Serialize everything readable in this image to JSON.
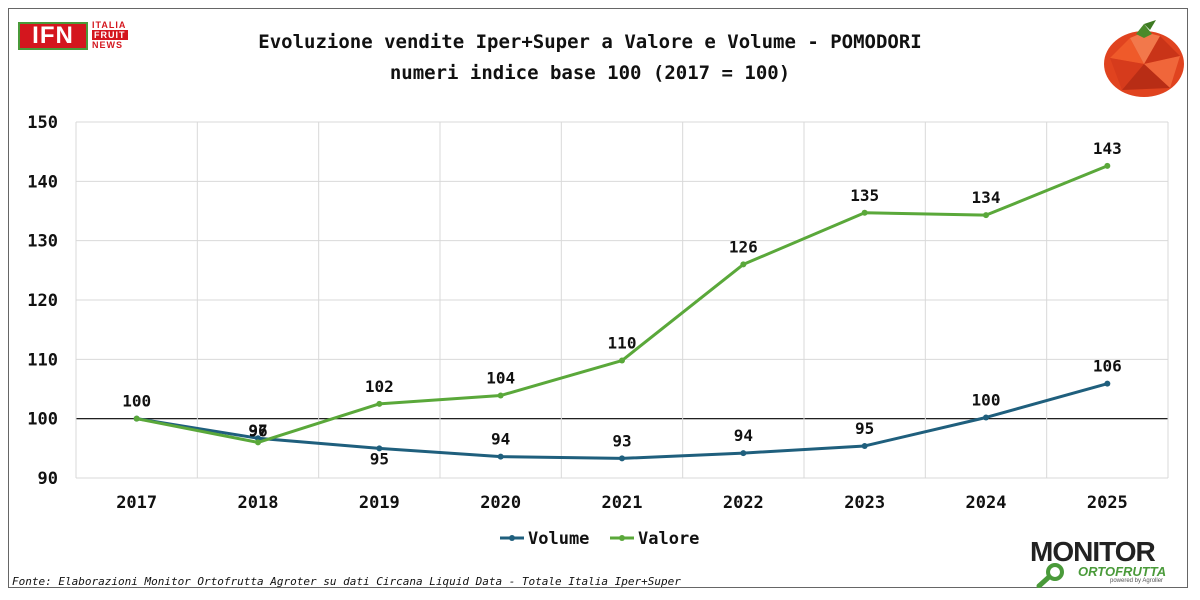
{
  "header": {
    "title_line1": "Evoluzione vendite Iper+Super a Valore e Volume - POMODORI",
    "title_line2": "numeri indice base 100 (2017 = 100)"
  },
  "logos": {
    "ifn_main": "IFN",
    "ifn_italia": "ITALIA",
    "ifn_fruit": "FRUIT",
    "ifn_news": "NEWS",
    "monitor_main": "MONITOR",
    "monitor_sub": "ORTOFRUTTA",
    "monitor_small": "powered by Agroller"
  },
  "footer": {
    "source": "Fonte: Elaborazioni Monitor Ortofrutta Agroter su dati Circana Liquid Data - Totale Italia Iper+Super"
  },
  "colors": {
    "volume": "#1f5f7d",
    "valore": "#5aa83a",
    "grid": "#d9d9d9",
    "baseline": "#000000"
  },
  "chart_data": {
    "type": "line",
    "title": "Evoluzione vendite Iper+Super a Valore e Volume - POMODORI",
    "subtitle": "numeri indice base 100 (2017 = 100)",
    "categories": [
      "2017",
      "2018",
      "2019",
      "2020",
      "2021",
      "2022",
      "2023",
      "2024",
      "2025"
    ],
    "series": [
      {
        "name": "Volume",
        "values": [
          100,
          96.7,
          95,
          93.6,
          93.3,
          94.2,
          95.4,
          100.2,
          105.9
        ],
        "labels": [
          "100",
          "97",
          "95",
          "94",
          "93",
          "94",
          "95",
          "100",
          "106"
        ]
      },
      {
        "name": "Valore",
        "values": [
          100,
          96.0,
          102.5,
          103.9,
          109.8,
          126.0,
          134.7,
          134.3,
          142.6
        ],
        "labels": [
          "100",
          "96",
          "102",
          "104",
          "110",
          "126",
          "135",
          "134",
          "143"
        ]
      }
    ],
    "ylim": [
      90,
      150
    ],
    "yticks": [
      "90",
      "100",
      "110",
      "120",
      "130",
      "140",
      "150"
    ],
    "reference_line": 100,
    "xlabel": "",
    "ylabel": "",
    "grid": true,
    "legend": "bottom-center"
  }
}
